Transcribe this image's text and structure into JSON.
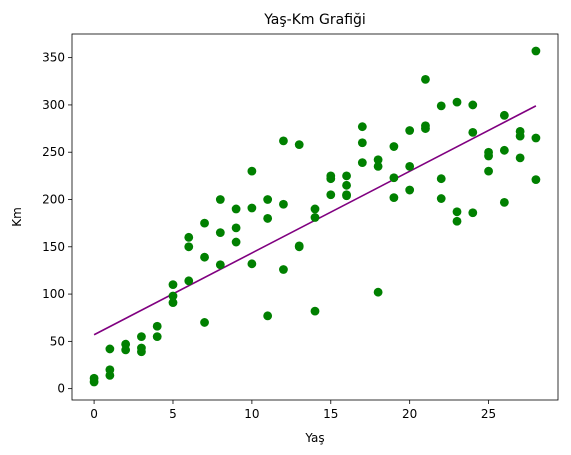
{
  "chart_data": {
    "type": "scatter",
    "title": "Yaş-Km Grafiği",
    "xlabel": "Yaş",
    "ylabel": "Km",
    "xlim": [
      -1.4,
      29.4
    ],
    "ylim": [
      -12,
      375
    ],
    "xticks": [
      0,
      5,
      10,
      15,
      20,
      25
    ],
    "yticks": [
      0,
      50,
      100,
      150,
      200,
      250,
      300,
      350
    ],
    "grid": false,
    "series": [
      {
        "kind": "scatter",
        "color": "#008000",
        "x": [
          0,
          0,
          1,
          1,
          1,
          2,
          2,
          3,
          3,
          3,
          4,
          4,
          5,
          5,
          5,
          6,
          6,
          6,
          7,
          7,
          7,
          8,
          8,
          8,
          9,
          9,
          9,
          10,
          10,
          10,
          11,
          11,
          11,
          12,
          12,
          12,
          13,
          13,
          13,
          14,
          14,
          14,
          15,
          15,
          15,
          16,
          16,
          16,
          16,
          17,
          17,
          17,
          18,
          18,
          18,
          19,
          19,
          19,
          20,
          20,
          20,
          21,
          21,
          21,
          22,
          22,
          22,
          23,
          23,
          23,
          24,
          24,
          24,
          25,
          25,
          25,
          26,
          26,
          26,
          27,
          27,
          27,
          28,
          28,
          28
        ],
        "y": [
          7,
          11,
          14,
          20,
          42,
          41,
          47,
          39,
          43,
          55,
          55,
          66,
          91,
          98,
          110,
          114,
          150,
          160,
          70,
          139,
          175,
          131,
          165,
          200,
          155,
          170,
          190,
          132,
          191,
          230,
          77,
          180,
          200,
          126,
          195,
          262,
          151,
          150,
          258,
          82,
          181,
          190,
          222,
          225,
          205,
          215,
          225,
          204,
          205,
          239,
          260,
          277,
          102,
          235,
          242,
          202,
          223,
          256,
          210,
          235,
          273,
          275,
          278,
          327,
          201,
          222,
          299,
          177,
          187,
          303,
          186,
          271,
          300,
          230,
          246,
          250,
          197,
          252,
          289,
          244,
          267,
          272,
          221,
          265,
          357
        ]
      },
      {
        "kind": "line",
        "color": "#800080",
        "x": [
          0,
          28
        ],
        "y": [
          57,
          299
        ]
      }
    ]
  }
}
